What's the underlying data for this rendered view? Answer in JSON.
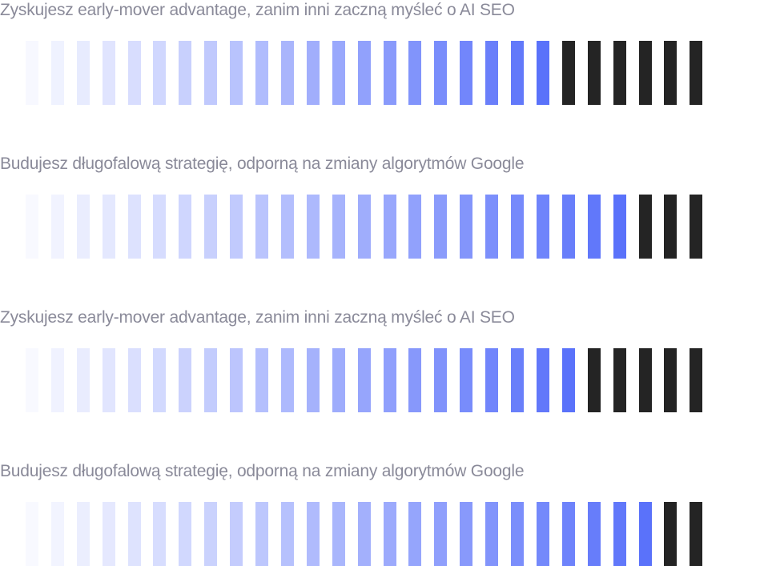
{
  "gradient_colors": {
    "start": "#ffffff",
    "end": "#5a72fa",
    "dark": "#242424"
  },
  "rows": [
    {
      "label": "Zyskujesz early-mover advantage, zanim inni zaczną myśleć o AI SEO",
      "total_segments": 28,
      "gradient_segments": 22,
      "dark_segments": 6
    },
    {
      "label": "Budujesz długofalową strategię, odporną na zmiany algorytmów Google",
      "total_segments": 28,
      "gradient_segments": 25,
      "dark_segments": 3
    },
    {
      "label": "Zyskujesz early-mover advantage, zanim inni zaczną myśleć o AI SEO",
      "total_segments": 28,
      "gradient_segments": 23,
      "dark_segments": 5
    },
    {
      "label": "Budujesz długofalową strategię, odporną na zmiany algorytmów Google",
      "total_segments": 28,
      "gradient_segments": 26,
      "dark_segments": 2
    }
  ]
}
